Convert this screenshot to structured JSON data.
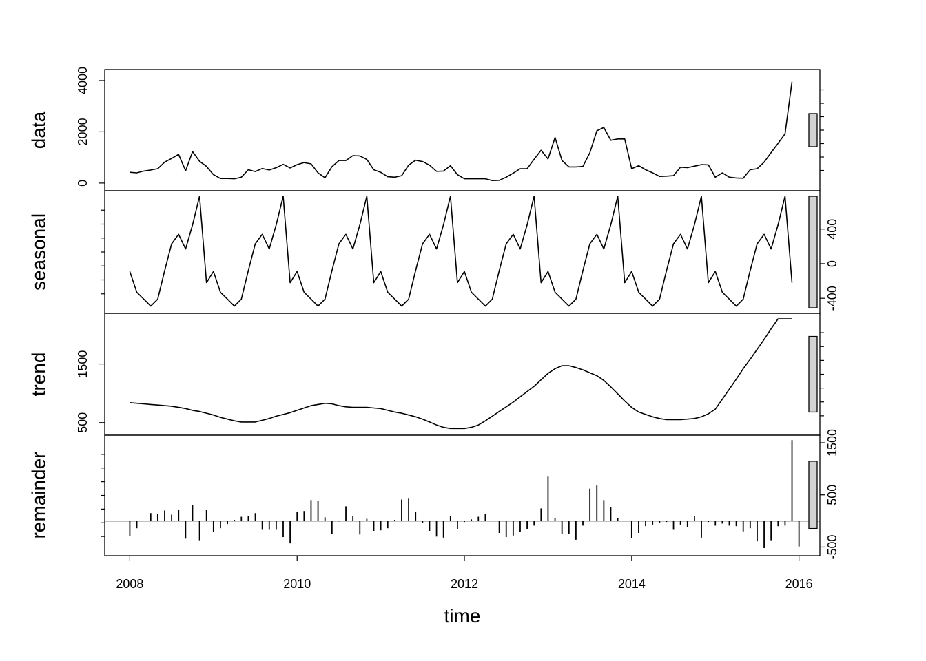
{
  "chart_data": {
    "type": "line",
    "xlabel": "time",
    "x_ticks": [
      2008,
      2010,
      2012,
      2014,
      2016
    ],
    "x_range": [
      2007.7,
      2016.25
    ],
    "time": {
      "start": 2008.0,
      "step": 0.083333,
      "count": 96
    },
    "panels": [
      {
        "name": "data",
        "label": "data",
        "plot": "line",
        "yticks": [
          0,
          2000,
          4000
        ],
        "tick_side": "left",
        "ylim": [
          -30,
          4160
        ],
        "values": [
          420,
          400,
          470,
          510,
          560,
          820,
          960,
          1120,
          480,
          1230,
          850,
          650,
          330,
          180,
          180,
          170,
          230,
          520,
          450,
          570,
          510,
          600,
          730,
          590,
          720,
          800,
          750,
          400,
          210,
          640,
          880,
          880,
          1070,
          1060,
          920,
          520,
          420,
          250,
          230,
          290,
          700,
          890,
          840,
          700,
          460,
          470,
          680,
          330,
          170,
          170,
          170,
          170,
          100,
          110,
          230,
          390,
          560,
          560,
          930,
          1280,
          940,
          1780,
          880,
          630,
          630,
          650,
          1180,
          2040,
          2170,
          1670,
          1720,
          1720,
          560,
          680,
          520,
          400,
          260,
          270,
          290,
          620,
          600,
          660,
          720,
          710,
          230,
          400,
          230,
          200,
          190,
          520,
          560,
          820,
          1190,
          1550,
          1920,
          3950
        ]
      },
      {
        "name": "seasonal",
        "label": "seasonal",
        "plot": "line",
        "yticks": [
          -400,
          0,
          400
        ],
        "tick_side": "right",
        "ylim": [
          -510,
          780
        ],
        "values": [
          -90,
          -330,
          -410,
          -490,
          -410,
          -80,
          230,
          340,
          170,
          450,
          780,
          -220,
          -90,
          -330,
          -410,
          -490,
          -410,
          -80,
          230,
          340,
          170,
          450,
          780,
          -220,
          -90,
          -330,
          -410,
          -490,
          -410,
          -80,
          230,
          340,
          170,
          450,
          780,
          -220,
          -90,
          -330,
          -410,
          -490,
          -410,
          -80,
          230,
          340,
          170,
          450,
          780,
          -220,
          -90,
          -330,
          -410,
          -490,
          -410,
          -80,
          230,
          340,
          170,
          450,
          780,
          -220,
          -90,
          -330,
          -410,
          -490,
          -410,
          -80,
          230,
          340,
          170,
          450,
          780,
          -220,
          -90,
          -330,
          -410,
          -490,
          -410,
          -80,
          230,
          340,
          170,
          450,
          780,
          -220,
          -90,
          -330,
          -410,
          -490,
          -410,
          -80,
          230,
          340,
          170,
          450,
          780,
          -220
        ]
      },
      {
        "name": "trend",
        "label": "trend",
        "plot": "line",
        "yticks": [
          500,
          1500
        ],
        "tick_side": "left",
        "ylim": [
          380,
          2270
        ],
        "values": [
          840,
          830,
          820,
          810,
          800,
          790,
          780,
          760,
          740,
          710,
          690,
          660,
          630,
          590,
          560,
          530,
          510,
          510,
          510,
          540,
          570,
          610,
          640,
          670,
          710,
          750,
          790,
          810,
          830,
          820,
          790,
          770,
          760,
          760,
          760,
          750,
          740,
          710,
          680,
          660,
          630,
          600,
          560,
          510,
          460,
          420,
          400,
          400,
          400,
          420,
          460,
          530,
          610,
          690,
          770,
          850,
          940,
          1030,
          1120,
          1230,
          1340,
          1420,
          1470,
          1470,
          1440,
          1400,
          1350,
          1300,
          1220,
          1110,
          990,
          870,
          760,
          680,
          640,
          600,
          570,
          550,
          550,
          550,
          560,
          570,
          600,
          650,
          730,
          900,
          1070,
          1240,
          1420,
          1580,
          1750,
          1920,
          2100,
          2270,
          2270,
          2270
        ],
        "values_plotted": 96
      },
      {
        "name": "remainder",
        "label": "remainder",
        "plot": "bars",
        "yticks": [
          -500,
          500,
          1500
        ],
        "tick_side": "right",
        "ylim": [
          -560,
          1540
        ],
        "values": [
          -290,
          -140,
          0,
          150,
          130,
          200,
          120,
          220,
          -340,
          300,
          -370,
          210,
          -210,
          -140,
          -60,
          20,
          80,
          100,
          150,
          -170,
          -170,
          -170,
          -310,
          -430,
          180,
          190,
          400,
          380,
          70,
          -250,
          -10,
          280,
          90,
          -260,
          40,
          -190,
          -180,
          -140,
          20,
          410,
          440,
          180,
          -40,
          -190,
          -300,
          -320,
          100,
          -160,
          -20,
          30,
          80,
          140,
          0,
          -230,
          -310,
          -280,
          -210,
          -150,
          -90,
          240,
          850,
          60,
          -250,
          -250,
          -360,
          -90,
          620,
          680,
          400,
          270,
          50,
          0,
          -330,
          -230,
          -100,
          -70,
          -40,
          -20,
          -170,
          -70,
          -120,
          100,
          -320,
          -20,
          -90,
          -50,
          -90,
          -100,
          -200,
          -140,
          -390,
          -520,
          -370,
          -100,
          -90,
          1550,
          -490
        ]
      }
    ]
  }
}
